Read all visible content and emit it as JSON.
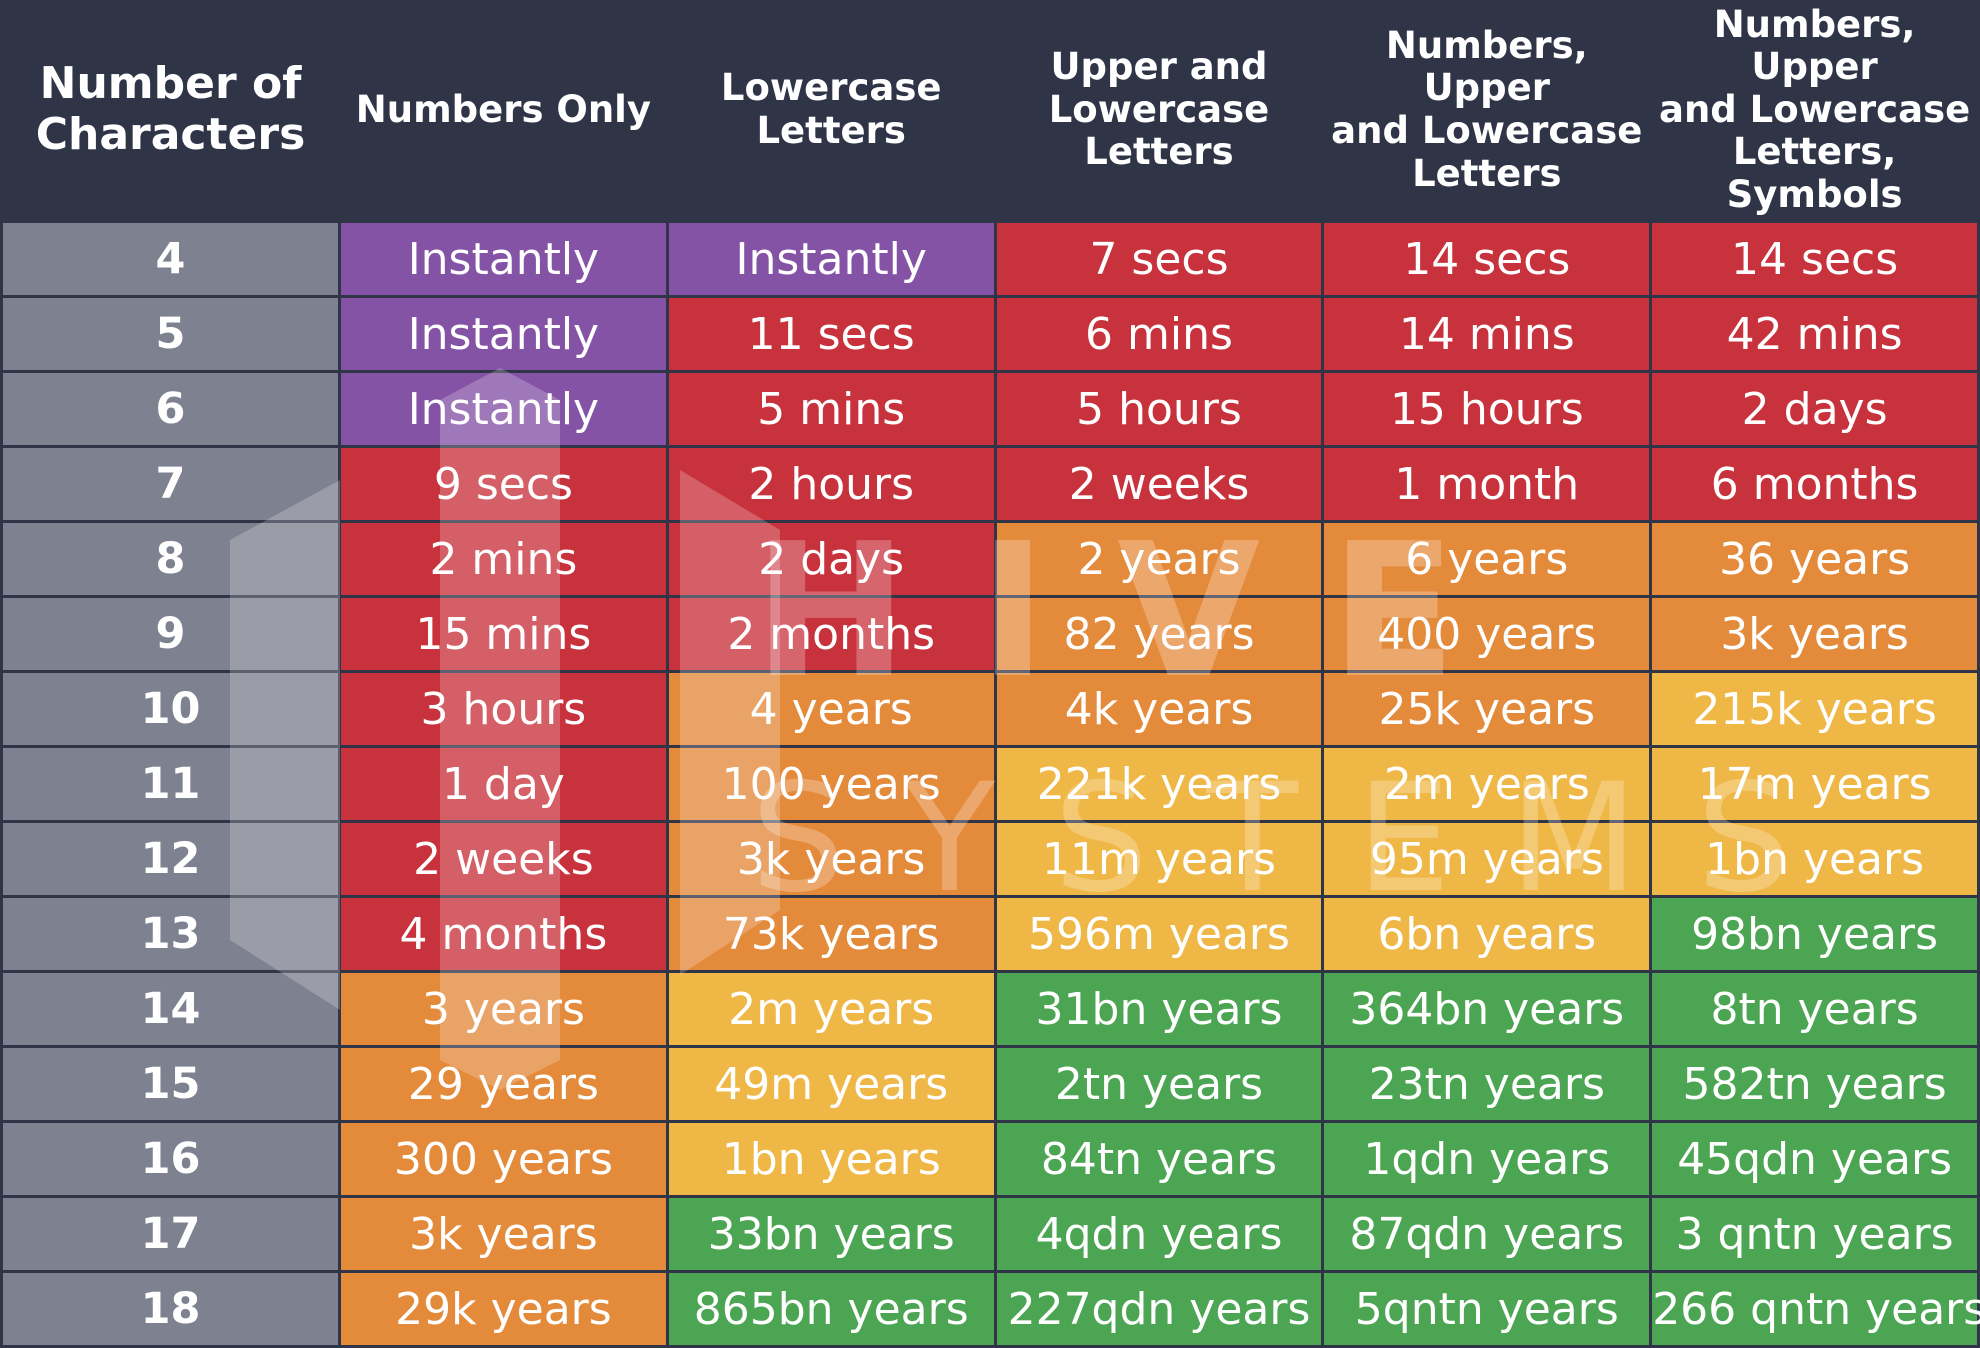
{
  "headers": [
    "Number of\nCharacters",
    "Numbers Only",
    "Lowercase\nLetters",
    "Upper and\nLowercase\nLetters",
    "Numbers, Upper\nand Lowercase\nLetters",
    "Numbers, Upper\nand Lowercase\nLetters, Symbols"
  ],
  "colors": {
    "header_bg": "#2f3447",
    "row_label_bg": "#7e8290",
    "purple": "#8553a6",
    "red": "#c8323c",
    "orange": "#e48a3b",
    "yellow": "#efb745",
    "green": "#4ca552"
  },
  "watermark": {
    "line1": "HIVE",
    "line2": "SYSTEMS",
    "logo_icon": "hive-hexagon-logo"
  },
  "rows": [
    {
      "chars": "4",
      "cells": [
        {
          "text": "Instantly",
          "color": "purple"
        },
        {
          "text": "Instantly",
          "color": "purple"
        },
        {
          "text": "7 secs",
          "color": "red"
        },
        {
          "text": "14 secs",
          "color": "red"
        },
        {
          "text": "14 secs",
          "color": "red"
        }
      ]
    },
    {
      "chars": "5",
      "cells": [
        {
          "text": "Instantly",
          "color": "purple"
        },
        {
          "text": "11 secs",
          "color": "red"
        },
        {
          "text": "6 mins",
          "color": "red"
        },
        {
          "text": "14 mins",
          "color": "red"
        },
        {
          "text": "42 mins",
          "color": "red"
        }
      ]
    },
    {
      "chars": "6",
      "cells": [
        {
          "text": "Instantly",
          "color": "purple"
        },
        {
          "text": "5 mins",
          "color": "red"
        },
        {
          "text": "5 hours",
          "color": "red"
        },
        {
          "text": "15 hours",
          "color": "red"
        },
        {
          "text": "2 days",
          "color": "red"
        }
      ]
    },
    {
      "chars": "7",
      "cells": [
        {
          "text": "9 secs",
          "color": "red"
        },
        {
          "text": "2 hours",
          "color": "red"
        },
        {
          "text": "2 weeks",
          "color": "red"
        },
        {
          "text": "1 month",
          "color": "red"
        },
        {
          "text": "6 months",
          "color": "red"
        }
      ]
    },
    {
      "chars": "8",
      "cells": [
        {
          "text": "2 mins",
          "color": "red"
        },
        {
          "text": "2 days",
          "color": "red"
        },
        {
          "text": "2 years",
          "color": "orange"
        },
        {
          "text": "6 years",
          "color": "orange"
        },
        {
          "text": "36 years",
          "color": "orange"
        }
      ]
    },
    {
      "chars": "9",
      "cells": [
        {
          "text": "15 mins",
          "color": "red"
        },
        {
          "text": "2 months",
          "color": "red"
        },
        {
          "text": "82 years",
          "color": "orange"
        },
        {
          "text": "400 years",
          "color": "orange"
        },
        {
          "text": "3k years",
          "color": "orange"
        }
      ]
    },
    {
      "chars": "10",
      "cells": [
        {
          "text": "3 hours",
          "color": "red"
        },
        {
          "text": "4 years",
          "color": "orange"
        },
        {
          "text": "4k years",
          "color": "orange"
        },
        {
          "text": "25k years",
          "color": "orange"
        },
        {
          "text": "215k years",
          "color": "yellow"
        }
      ]
    },
    {
      "chars": "11",
      "cells": [
        {
          "text": "1 day",
          "color": "red"
        },
        {
          "text": "100 years",
          "color": "orange"
        },
        {
          "text": "221k years",
          "color": "yellow"
        },
        {
          "text": "2m years",
          "color": "yellow"
        },
        {
          "text": "17m years",
          "color": "yellow"
        }
      ]
    },
    {
      "chars": "12",
      "cells": [
        {
          "text": "2 weeks",
          "color": "red"
        },
        {
          "text": "3k years",
          "color": "orange"
        },
        {
          "text": "11m years",
          "color": "yellow"
        },
        {
          "text": "95m years",
          "color": "yellow"
        },
        {
          "text": "1bn years",
          "color": "yellow"
        }
      ]
    },
    {
      "chars": "13",
      "cells": [
        {
          "text": "4 months",
          "color": "red"
        },
        {
          "text": "73k years",
          "color": "orange"
        },
        {
          "text": "596m years",
          "color": "yellow"
        },
        {
          "text": "6bn years",
          "color": "yellow"
        },
        {
          "text": "98bn years",
          "color": "green"
        }
      ]
    },
    {
      "chars": "14",
      "cells": [
        {
          "text": "3 years",
          "color": "orange"
        },
        {
          "text": "2m years",
          "color": "yellow"
        },
        {
          "text": "31bn years",
          "color": "green"
        },
        {
          "text": "364bn years",
          "color": "green"
        },
        {
          "text": "8tn years",
          "color": "green"
        }
      ]
    },
    {
      "chars": "15",
      "cells": [
        {
          "text": "29 years",
          "color": "orange"
        },
        {
          "text": "49m years",
          "color": "yellow"
        },
        {
          "text": "2tn years",
          "color": "green"
        },
        {
          "text": "23tn years",
          "color": "green"
        },
        {
          "text": "582tn years",
          "color": "green"
        }
      ]
    },
    {
      "chars": "16",
      "cells": [
        {
          "text": "300 years",
          "color": "orange"
        },
        {
          "text": "1bn years",
          "color": "yellow"
        },
        {
          "text": "84tn years",
          "color": "green"
        },
        {
          "text": "1qdn years",
          "color": "green"
        },
        {
          "text": "45qdn years",
          "color": "green"
        }
      ]
    },
    {
      "chars": "17",
      "cells": [
        {
          "text": "3k years",
          "color": "orange"
        },
        {
          "text": "33bn years",
          "color": "green"
        },
        {
          "text": "4qdn years",
          "color": "green"
        },
        {
          "text": "87qdn years",
          "color": "green"
        },
        {
          "text": "3 qntn years",
          "color": "green"
        }
      ]
    },
    {
      "chars": "18",
      "cells": [
        {
          "text": "29k years",
          "color": "orange"
        },
        {
          "text": "865bn years",
          "color": "green"
        },
        {
          "text": "227qdn years",
          "color": "green"
        },
        {
          "text": "5qntn years",
          "color": "green"
        },
        {
          "text": "266 qntn years",
          "color": "green"
        }
      ]
    }
  ]
}
